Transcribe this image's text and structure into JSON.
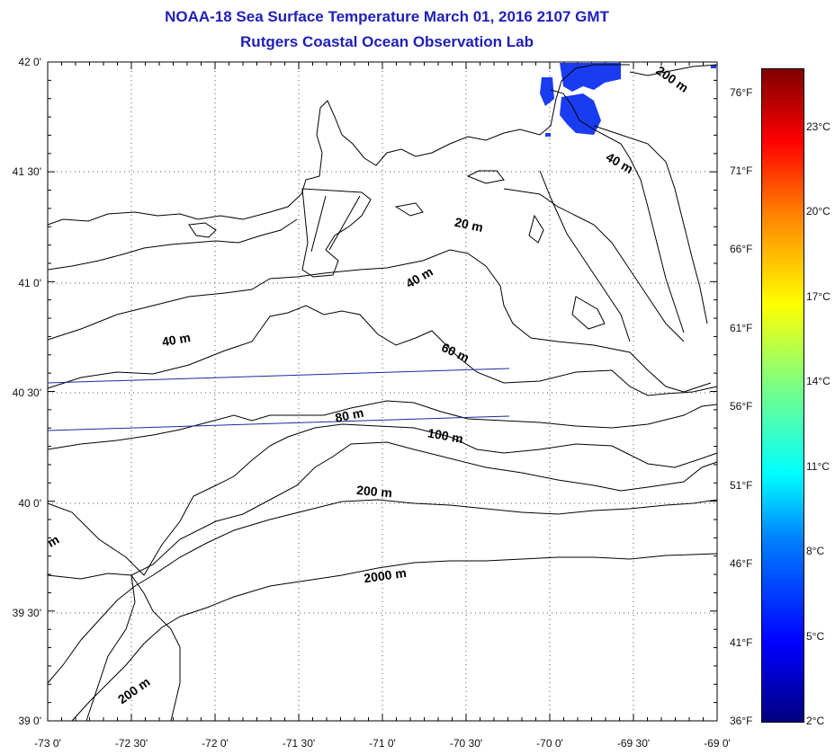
{
  "header": {
    "title": "NOAA-18 Sea Surface Temperature March 01, 2016 2107 GMT",
    "subtitle": "Rutgers Coastal Ocean Observation Lab"
  },
  "map": {
    "lat_labels": [
      "42 0'",
      "41 30'",
      "41 0'",
      "40 30'",
      "40 0'",
      "39 30'",
      "39 0'"
    ],
    "lon_labels": [
      "-73 0'",
      "-72 30'",
      "-72 0'",
      "-71 30'",
      "-71 0'",
      "-70 30'",
      "-70 0'",
      "-69 30'",
      "-69 0'"
    ],
    "contour_labels": [
      "200 m",
      "40 m",
      "20 m",
      "40 m",
      "40 m",
      "60 m",
      "80 m",
      "100 m",
      "200 m",
      "2000 m",
      "200 m",
      "m"
    ],
    "land_color": "#000000",
    "cold_water_color": "#1a3cf0"
  },
  "colorbar": {
    "fahrenheit": [
      "76°F",
      "71°F",
      "66°F",
      "61°F",
      "56°F",
      "51°F",
      "46°F",
      "41°F",
      "36°F"
    ],
    "celsius": [
      "23°C",
      "20°C",
      "17°C",
      "14°C",
      "11°C",
      "8°C",
      "5°C",
      "2°C"
    ]
  }
}
